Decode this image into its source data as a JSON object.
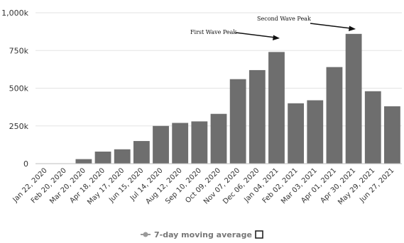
{
  "chart_data": {
    "type": "bar",
    "title": "",
    "xlabel": "",
    "ylabel": "",
    "ylim": [
      0,
      1000000
    ],
    "y_ticks": [
      {
        "value": 0,
        "label": "0"
      },
      {
        "value": 250000,
        "label": "250k"
      },
      {
        "value": 500000,
        "label": "500k"
      },
      {
        "value": 750000,
        "label": "750k"
      },
      {
        "value": 1000000,
        "label": "1,000k"
      }
    ],
    "x_tick_labels": [
      "Jan 22, 2020",
      "Feb 20, 2020",
      "Mar 20, 2020",
      "Apr 18, 2020",
      "May 17, 2020",
      "Jun 15, 2020",
      "Jul 14, 2020",
      "Aug 12, 2020",
      "Sep 10, 2020",
      "Oct 09, 2020",
      "Nov 07, 2020",
      "Dec 06, 2020",
      "Jan 04, 2021",
      "Feb 02, 2021",
      "Mar 03, 2021",
      "Apr 01, 2021",
      "Apr 30, 2021",
      "May 29, 2021",
      "Jun 27, 2021"
    ],
    "grid": true,
    "bar_color": "#6e6e6e",
    "gridline_color": "#e3e3e3",
    "legend": {
      "placement": "bottom-center",
      "entries": [
        {
          "label": "7-day moving average",
          "color": "#9a9a9a",
          "icon": "line-dot-icon"
        },
        {
          "label": "",
          "icon": "square-outline-icon"
        }
      ]
    },
    "annotations": [
      {
        "text": "First Wave Peak",
        "target_date": "Jan 04, 2021",
        "target_value": 840000
      },
      {
        "text": "Second Wave Peak",
        "target_date": "Apr 30, 2021",
        "target_value": 900000
      }
    ],
    "weekly_average": [
      {
        "date": "Jan 22, 2020",
        "value": 0
      },
      {
        "date": "Feb 20, 2020",
        "value": 1000
      },
      {
        "date": "Mar 20, 2020",
        "value": 30000
      },
      {
        "date": "Apr 18, 2020",
        "value": 80000
      },
      {
        "date": "May 17, 2020",
        "value": 95000
      },
      {
        "date": "Jun 15, 2020",
        "value": 150000
      },
      {
        "date": "Jul 14, 2020",
        "value": 250000
      },
      {
        "date": "Aug 12, 2020",
        "value": 270000
      },
      {
        "date": "Sep 10, 2020",
        "value": 280000
      },
      {
        "date": "Oct 09, 2020",
        "value": 330000
      },
      {
        "date": "Nov 07, 2020",
        "value": 560000
      },
      {
        "date": "Dec 06, 2020",
        "value": 620000
      },
      {
        "date": "Jan 04, 2021",
        "value": 740000
      },
      {
        "date": "Feb 02, 2021",
        "value": 400000
      },
      {
        "date": "Mar 03, 2021",
        "value": 420000
      },
      {
        "date": "Apr 01, 2021",
        "value": 640000
      },
      {
        "date": "Apr 30, 2021",
        "value": 860000
      },
      {
        "date": "May 29, 2021",
        "value": 480000
      },
      {
        "date": "Jun 27, 2021",
        "value": 380000
      }
    ]
  }
}
